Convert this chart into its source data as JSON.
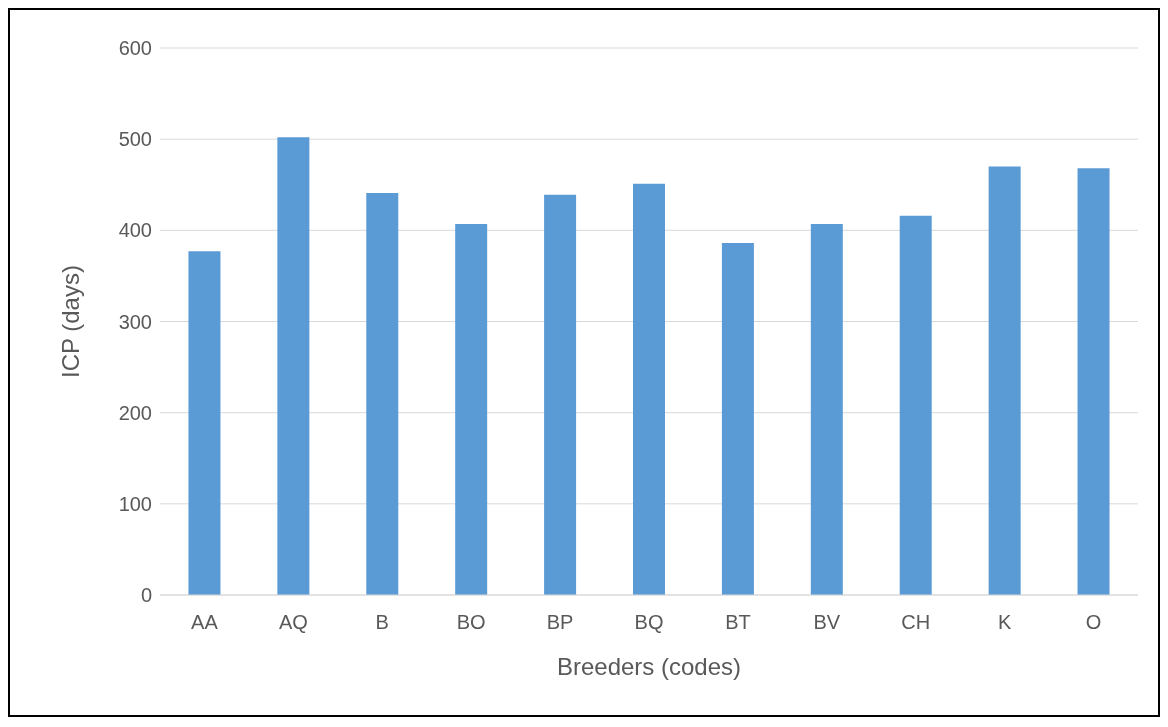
{
  "chart_data": {
    "type": "bar",
    "xlabel": "Breeders (codes)",
    "ylabel": "ICP (days)",
    "categories": [
      "AA",
      "AQ",
      "B",
      "BO",
      "BP",
      "BQ",
      "BT",
      "BV",
      "CH",
      "K",
      "O"
    ],
    "values": [
      377,
      502,
      441,
      407,
      439,
      451,
      386,
      407,
      416,
      470,
      468
    ],
    "color": "#5b9bd5",
    "ylim": [
      0,
      600
    ],
    "yticks": [
      0,
      100,
      200,
      300,
      400,
      500,
      600
    ],
    "grid": "y"
  }
}
